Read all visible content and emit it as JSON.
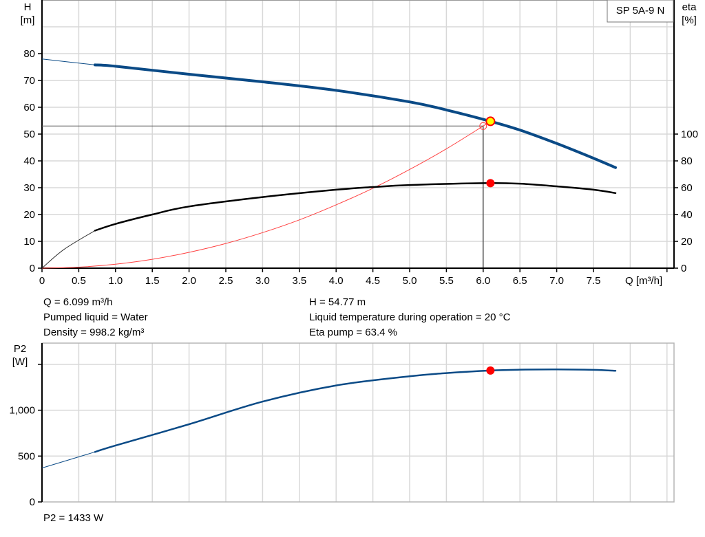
{
  "chart_data": [
    {
      "type": "line",
      "title_box": "SP 5A-9 N",
      "xlabel": "Q [m³/h]",
      "ylabel": "H\n[m]",
      "ylabel_right": "eta\n[%]",
      "xlim": [
        0,
        8.5
      ],
      "ylim": [
        0,
        100
      ],
      "ylim_right": [
        0,
        200
      ],
      "x_ticks": [
        "0",
        "0.5",
        "1.0",
        "1.5",
        "2.0",
        "2.5",
        "3.0",
        "3.5",
        "4.0",
        "4.5",
        "5.0",
        "5.5",
        "6.0",
        "6.5",
        "7.0",
        "7.5"
      ],
      "x_tick_values": [
        0,
        0.5,
        1,
        1.5,
        2,
        2.5,
        3,
        3.5,
        4,
        4.5,
        5,
        5.5,
        6,
        6.5,
        7,
        7.5
      ],
      "y_ticks": [
        0,
        10,
        20,
        30,
        40,
        50,
        60,
        70,
        80
      ],
      "y_ticks_right": [
        0,
        20,
        40,
        60,
        80,
        100
      ],
      "grid": true,
      "series": [
        {
          "axis": "left",
          "color": "#0a4a86",
          "x": [
            0,
            0.72,
            1,
            2,
            3,
            4,
            5,
            5.5,
            6.099,
            6.5,
            7,
            7.5,
            7.8
          ],
          "y": [
            78,
            75.8,
            75.3,
            72.3,
            69.5,
            66.3,
            62,
            59,
            54.77,
            51.5,
            46.5,
            41,
            37.5
          ]
        },
        {
          "axis": "right",
          "color": "#000000",
          "x": [
            0,
            0.3,
            0.72,
            1,
            1.5,
            2,
            3,
            4,
            4.5,
            5,
            6,
            6.5,
            7,
            7.5,
            7.8
          ],
          "y": [
            0,
            14,
            28,
            33,
            40,
            46,
            53,
            58.5,
            60.5,
            62,
            63.4,
            63,
            61,
            58.5,
            56
          ]
        },
        {
          "axis": "left",
          "color": "#ff4040",
          "x": [
            0,
            0.5,
            1,
            1.5,
            2,
            2.5,
            3,
            3.5,
            4,
            4.5,
            5,
            5.5,
            6.0
          ],
          "y": [
            0,
            0.37,
            1.47,
            3.3,
            5.9,
            9.2,
            13.25,
            18,
            23.6,
            29.8,
            36.8,
            44.5,
            53
          ]
        }
      ],
      "duty_point": {
        "q": 6.0,
        "h": 53
      },
      "operating_point": {
        "q": 6.099,
        "h": 54.77,
        "eta": 63.4,
        "fill": "#ffff00",
        "stroke": "#ff0000"
      }
    },
    {
      "type": "line",
      "ylabel": "P2\n[W]",
      "xlim": [
        0,
        8.5
      ],
      "ylim": [
        0,
        1500
      ],
      "y_ticks": [
        "0",
        "500",
        "1,000",
        ""
      ],
      "y_tick_values": [
        0,
        500,
        1000,
        1500
      ],
      "grid": true,
      "series": [
        {
          "color": "#0a4a86",
          "x": [
            0,
            0.72,
            1,
            2,
            3,
            4,
            5,
            5.5,
            6.099,
            6.5,
            7,
            7.5,
            7.8
          ],
          "y": [
            370,
            545,
            615,
            847,
            1094,
            1270,
            1370,
            1405,
            1433,
            1442,
            1445,
            1440,
            1430
          ]
        }
      ],
      "operating_point": {
        "q": 6.099,
        "p2": 1433,
        "color": "#ff0000"
      }
    }
  ],
  "info": {
    "q": "Q = 6.099 m³/h",
    "liquid": "Pumped liquid = Water",
    "density": "Density = 998.2 kg/m³",
    "h": "H = 54.77 m",
    "temp": "Liquid temperature during operation = 20 °C",
    "eta": "Eta pump = 63.4 %",
    "p2": "P2 = 1433 W"
  }
}
